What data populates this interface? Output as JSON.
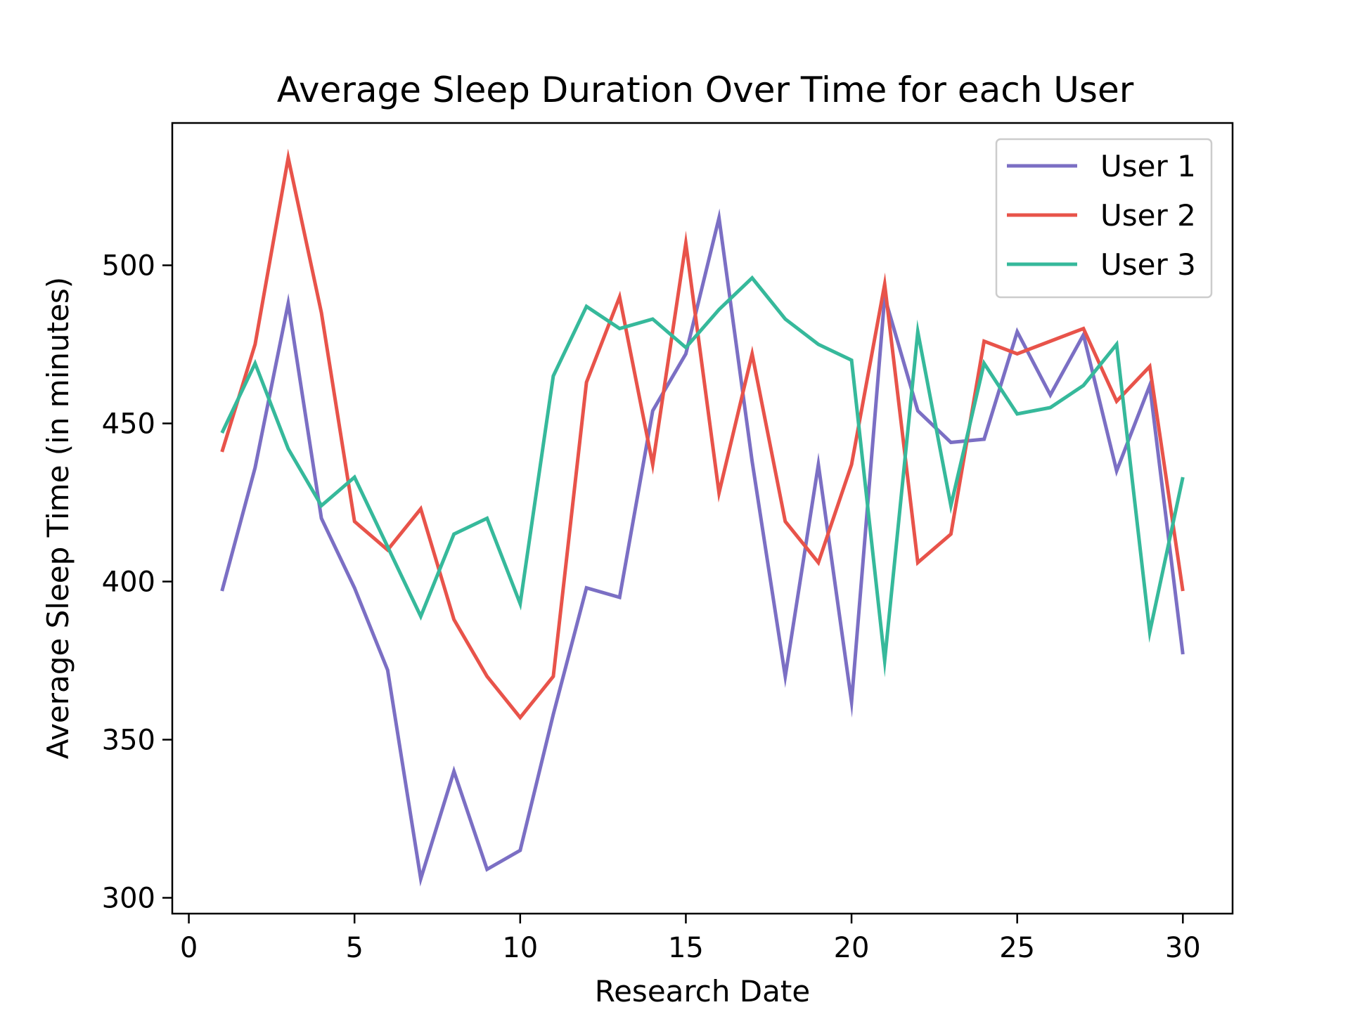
{
  "chart_data": {
    "type": "line",
    "title": "Average Sleep Duration Over Time for each User",
    "xlabel": "Research Date",
    "ylabel": "Average Sleep Time (in minutes)",
    "xlim": [
      -0.5,
      31.5
    ],
    "ylim": [
      295,
      545
    ],
    "xticks": [
      0,
      5,
      10,
      15,
      20,
      25,
      30
    ],
    "yticks": [
      300,
      350,
      400,
      450,
      500
    ],
    "grid": false,
    "legend_position": "top-right",
    "x": [
      1,
      2,
      3,
      4,
      5,
      6,
      7,
      8,
      9,
      10,
      11,
      12,
      13,
      14,
      15,
      16,
      17,
      18,
      19,
      20,
      21,
      22,
      23,
      24,
      25,
      26,
      27,
      28,
      29,
      30
    ],
    "series": [
      {
        "name": "User 1",
        "color": "#7b6fc4",
        "values": [
          397,
          436,
          488,
          420,
          398,
          372,
          306,
          340,
          309,
          315,
          358,
          398,
          395,
          454,
          472,
          515,
          438,
          370,
          437,
          362,
          490,
          454,
          444,
          445,
          479,
          459,
          478,
          435,
          462,
          377
        ]
      },
      {
        "name": "User 2",
        "color": "#e8534a",
        "values": [
          441,
          475,
          534,
          485,
          419,
          410,
          423,
          388,
          370,
          357,
          370,
          463,
          490,
          437,
          507,
          428,
          472,
          419,
          406,
          437,
          494,
          406,
          415,
          476,
          472,
          476,
          480,
          457,
          468,
          397
        ]
      },
      {
        "name": "User 3",
        "color": "#36b99b",
        "values": [
          447,
          469,
          442,
          424,
          433,
          411,
          389,
          415,
          420,
          393,
          465,
          487,
          480,
          483,
          474,
          486,
          496,
          483,
          475,
          470,
          375,
          479,
          424,
          469,
          453,
          455,
          462,
          475,
          384,
          433
        ]
      }
    ]
  }
}
